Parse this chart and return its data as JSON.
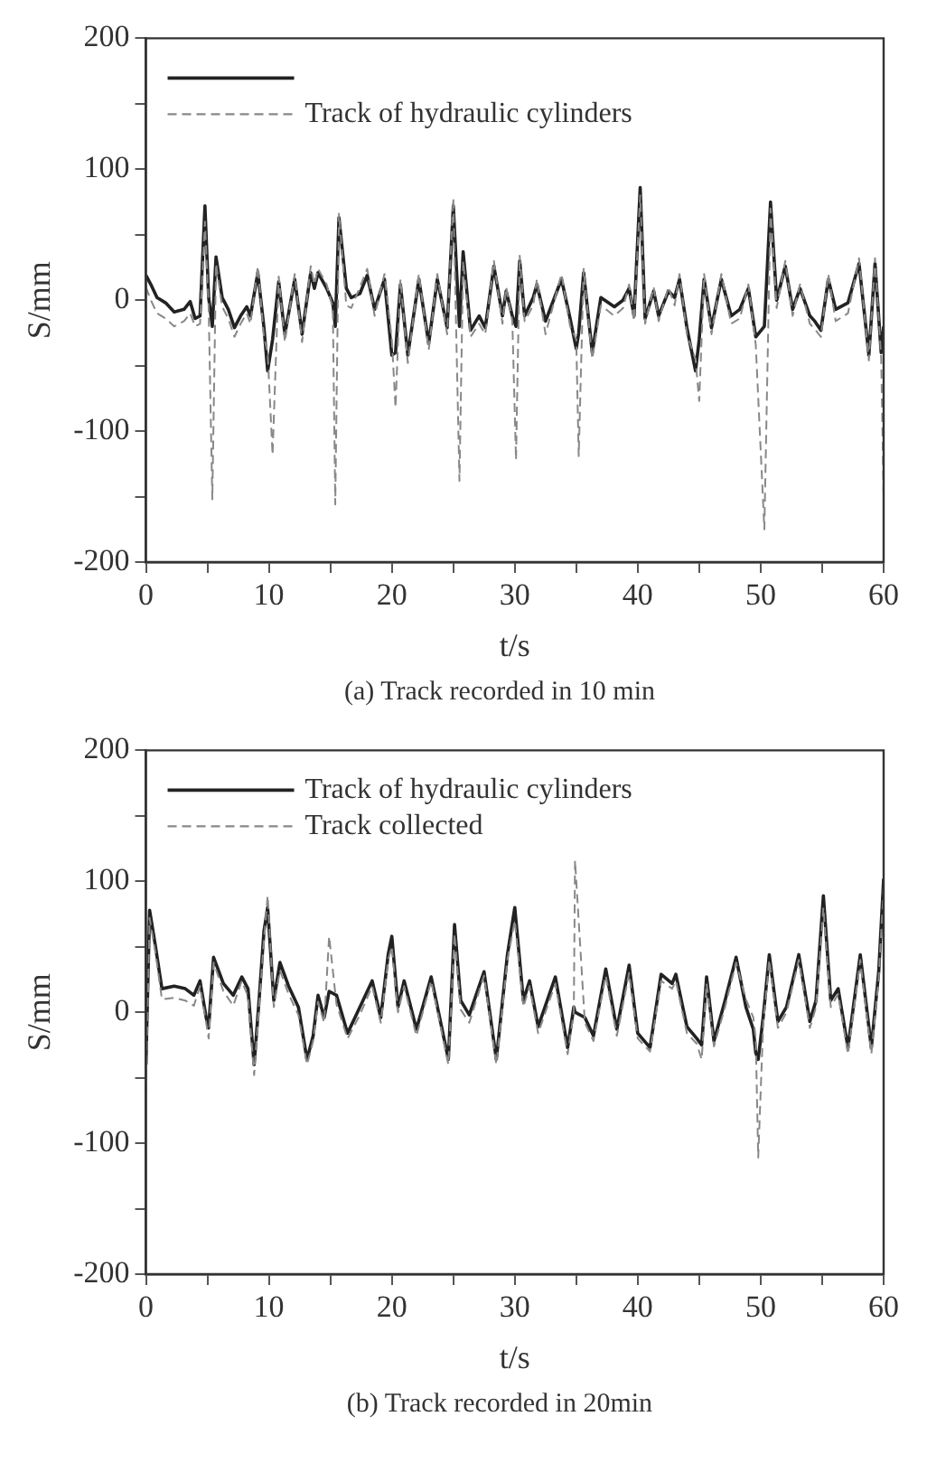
{
  "chart_data": [
    {
      "type": "line",
      "xlabel": "t/s",
      "ylabel": "S/mm",
      "annotations": [
        "(a) Track recorded in 10 min"
      ],
      "xlim": [
        0,
        60
      ],
      "ylim": [
        -200,
        200
      ],
      "xticks": [
        0,
        {
          "value": 5,
          "label": null
        },
        10,
        {
          "value": 15,
          "label": null
        },
        20,
        {
          "value": 25,
          "label": null
        },
        30,
        {
          "value": 35,
          "label": null
        },
        40,
        {
          "value": 45,
          "label": null
        },
        50,
        {
          "value": 55,
          "label": null
        },
        60
      ],
      "yticks": [
        -200,
        {
          "value": -150,
          "label": null
        },
        -100,
        {
          "value": -50,
          "label": null
        },
        0,
        {
          "value": 50,
          "label": null
        },
        100,
        {
          "value": 150,
          "label": null
        },
        200
      ],
      "legend": "top left",
      "grid": false,
      "x": [
        0,
        0.4,
        0.9,
        1.6,
        2.3,
        3.1,
        3.6,
        4.0,
        4.4,
        4.8,
        5.1,
        5.4,
        5.7,
        6.2,
        6.7,
        7.2,
        7.7,
        8.2,
        8.5,
        9.1,
        9.6,
        9.9,
        10.3,
        10.8,
        11.3,
        12.1,
        12.7,
        13.4,
        13.7,
        14.0,
        14.7,
        15.2,
        15.4,
        15.7,
        16.3,
        16.7,
        17.4,
        18.0,
        18.6,
        19.4,
        20.0,
        20.3,
        20.7,
        21.3,
        22.2,
        23.0,
        23.7,
        24.5,
        25.0,
        25.5,
        25.8,
        26.4,
        27.1,
        27.6,
        28.3,
        29.0,
        29.3,
        29.8,
        30.1,
        30.4,
        30.8,
        31.5,
        31.8,
        32.5,
        33.8,
        34.5,
        35.0,
        35.2,
        35.6,
        36.3,
        37.0,
        38.1,
        38.8,
        39.3,
        39.7,
        40.2,
        40.6,
        41.3,
        41.7,
        42.5,
        43.0,
        43.4,
        44.0,
        44.7,
        45.0,
        45.4,
        46.0,
        46.8,
        47.6,
        48.3,
        49.0,
        49.6,
        50.3,
        50.8,
        51.3,
        52.0,
        52.6,
        53.2,
        54.0,
        54.4,
        54.9,
        55.5,
        56.1,
        57.1,
        58.0,
        58.8,
        59.3,
        59.8,
        60
      ],
      "series": [
        {
          "color": "#222222",
          "line_style": "solid",
          "values": [
            19,
            12,
            2,
            -2,
            -9,
            -7,
            -1,
            -14,
            -12,
            72,
            2,
            -20,
            33,
            2,
            -7,
            -21,
            -12,
            -5,
            -12,
            21,
            -21,
            -54,
            -30,
            14,
            -26,
            16,
            -26,
            21,
            9,
            21,
            9,
            -2,
            -20,
            63,
            9,
            2,
            5,
            19,
            -7,
            16,
            -42,
            -40,
            12,
            -42,
            16,
            -33,
            16,
            -21,
            72,
            -20,
            37,
            -23,
            -12,
            -21,
            26,
            -12,
            7,
            -12,
            -20,
            30,
            -12,
            2,
            12,
            -16,
            16,
            -14,
            -37,
            -25,
            21,
            -40,
            2,
            -5,
            0,
            9,
            -12,
            86,
            -14,
            7,
            -12,
            7,
            2,
            16,
            -21,
            -54,
            -30,
            16,
            -21,
            16,
            -12,
            -7,
            9,
            -28,
            -20,
            75,
            0,
            26,
            -7,
            9,
            -12,
            -16,
            -23,
            16,
            -7,
            -2,
            28,
            -42,
            28,
            -40,
            -20
          ]
        },
        {
          "name": "Track of hydraulic cylinders",
          "color": "#888888",
          "line_style": "dashed",
          "values": [
            10,
            0,
            -10,
            -14,
            -20,
            -16,
            -10,
            -20,
            -18,
            60,
            -5,
            -152,
            28,
            -5,
            -14,
            -28,
            -18,
            -10,
            -18,
            26,
            -28,
            -40,
            -118,
            18,
            -32,
            20,
            -32,
            26,
            12,
            24,
            12,
            -6,
            -156,
            66,
            -4,
            -6,
            10,
            24,
            -12,
            20,
            -30,
            -82,
            16,
            -48,
            20,
            -38,
            20,
            -26,
            78,
            -138,
            30,
            -28,
            -18,
            -26,
            30,
            -18,
            10,
            -16,
            -122,
            34,
            -16,
            -4,
            16,
            -26,
            20,
            -20,
            -30,
            -119,
            24,
            -45,
            -4,
            -12,
            -6,
            12,
            -16,
            80,
            -18,
            10,
            -16,
            10,
            -4,
            20,
            -26,
            -45,
            -77,
            20,
            -26,
            20,
            -18,
            -14,
            12,
            -34,
            -175,
            70,
            -6,
            30,
            -12,
            12,
            -18,
            -22,
            -28,
            20,
            -16,
            -10,
            32,
            -46,
            32,
            -44,
            -150
          ]
        }
      ]
    },
    {
      "type": "line",
      "xlabel": "t/s",
      "ylabel": "S/mm",
      "annotations": [
        "(b) Track recorded in 20min"
      ],
      "xlim": [
        0,
        60
      ],
      "ylim": [
        -200,
        200
      ],
      "xticks": [
        0,
        {
          "value": 5,
          "label": null
        },
        10,
        {
          "value": 15,
          "label": null
        },
        20,
        {
          "value": 25,
          "label": null
        },
        30,
        {
          "value": 35,
          "label": null
        },
        40,
        {
          "value": 45,
          "label": null
        },
        50,
        {
          "value": 55,
          "label": null
        },
        60
      ],
      "yticks": [
        -200,
        {
          "value": -150,
          "label": null
        },
        -100,
        {
          "value": -50,
          "label": null
        },
        0,
        {
          "value": 50,
          "label": null
        },
        100,
        {
          "value": 150,
          "label": null
        },
        200
      ],
      "legend": "top left",
      "grid": false,
      "x": [
        0,
        0.3,
        0.8,
        1.3,
        2.3,
        3.2,
        3.9,
        4.4,
        4.9,
        5.1,
        5.5,
        6.3,
        7.1,
        7.8,
        8.3,
        8.8,
        9.2,
        9.6,
        9.9,
        10.4,
        10.9,
        11.6,
        12.4,
        13.1,
        13.6,
        14.0,
        14.5,
        14.9,
        15.5,
        16.4,
        17.4,
        18.4,
        19.1,
        19.7,
        20.0,
        20.5,
        21.0,
        22.0,
        23.2,
        24.6,
        25.1,
        25.6,
        26.3,
        27.5,
        28.5,
        29.4,
        30.0,
        30.7,
        31.2,
        31.9,
        33.3,
        34.3,
        34.8,
        34.9,
        35.7,
        36.4,
        37.4,
        38.3,
        39.3,
        40.0,
        41.0,
        41.9,
        42.8,
        43.1,
        44.0,
        44.8,
        45.2,
        45.6,
        46.2,
        47.1,
        48.0,
        48.8,
        49.4,
        49.6,
        49.8,
        50.2,
        50.7,
        51.4,
        52.1,
        53.1,
        54.0,
        54.5,
        55.1,
        55.7,
        56.3,
        57.1,
        58.1,
        59.0,
        59.6,
        60
      ],
      "series": [
        {
          "name": "Track of hydraulic cylinders",
          "color": "#222222",
          "line_style": "solid",
          "values": [
            -40,
            78,
            49,
            18,
            20,
            18,
            13,
            24,
            -4,
            -12,
            42,
            22,
            13,
            27,
            18,
            -40,
            9,
            62,
            80,
            9,
            38,
            20,
            4,
            -36,
            -18,
            13,
            -4,
            16,
            13,
            -16,
            4,
            24,
            -4,
            44,
            58,
            4,
            24,
            -13,
            27,
            -36,
            67,
            9,
            -2,
            31,
            -36,
            44,
            80,
            9,
            24,
            -11,
            27,
            -27,
            4,
            0,
            -4,
            -18,
            33,
            -13,
            36,
            -16,
            -27,
            29,
            22,
            29,
            -11,
            -20,
            -25,
            27,
            -22,
            9,
            42,
            4,
            -13,
            -31,
            -36,
            -4,
            44,
            -7,
            4,
            44,
            -7,
            9,
            89,
            9,
            18,
            -27,
            44,
            -27,
            31,
            102
          ]
        },
        {
          "name": "Track collected",
          "color": "#888888",
          "line_style": "dashed",
          "values": [
            -62,
            72,
            44,
            10,
            11,
            9,
            5,
            20,
            -8,
            -20,
            38,
            16,
            5,
            24,
            12,
            -48,
            5,
            55,
            89,
            4,
            32,
            14,
            -2,
            -40,
            -22,
            8,
            -8,
            58,
            6,
            -20,
            -2,
            20,
            -8,
            40,
            50,
            0,
            20,
            -18,
            24,
            -40,
            60,
            2,
            -8,
            28,
            -40,
            40,
            70,
            4,
            20,
            -16,
            22,
            -32,
            0,
            116,
            -8,
            -22,
            28,
            -18,
            30,
            -20,
            -30,
            24,
            18,
            24,
            -16,
            -24,
            -36,
            22,
            -26,
            4,
            38,
            10,
            -4,
            -20,
            -111,
            -10,
            40,
            -12,
            0,
            40,
            -12,
            4,
            80,
            4,
            14,
            -32,
            40,
            -32,
            26,
            95
          ]
        }
      ]
    }
  ]
}
